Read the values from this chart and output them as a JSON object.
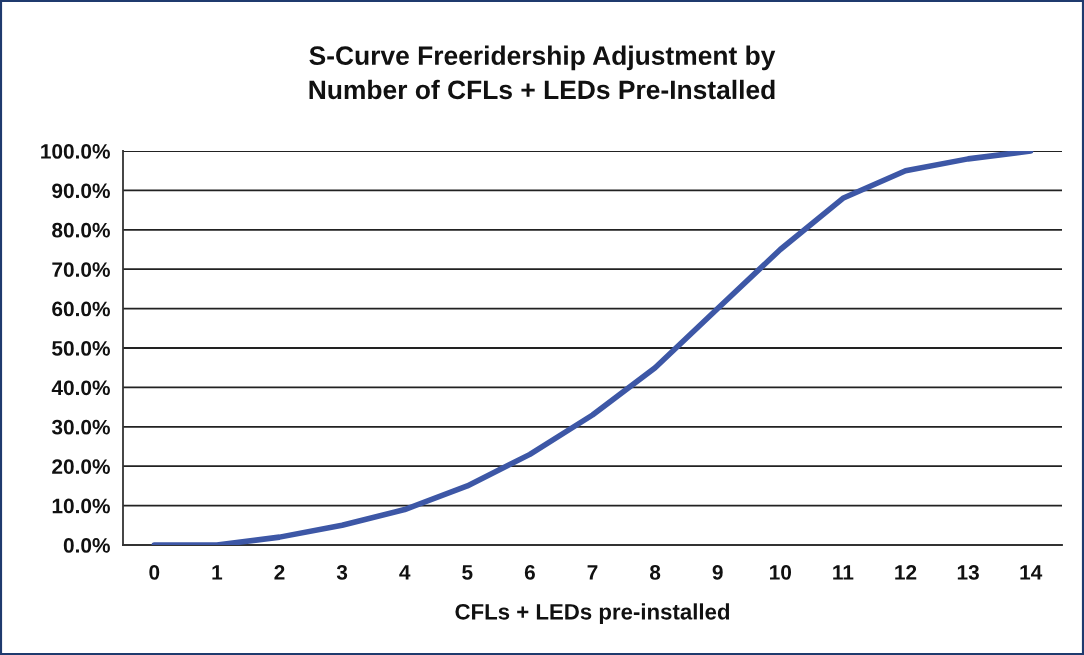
{
  "chart_data": {
    "type": "line",
    "title": "S-Curve Freeridership Adjustment by\nNumber of CFLs + LEDs Pre-Installed",
    "xlabel": "CFLs + LEDs pre-installed",
    "categories": [
      "0",
      "1",
      "2",
      "3",
      "4",
      "5",
      "6",
      "7",
      "8",
      "9",
      "10",
      "11",
      "12",
      "13",
      "14"
    ],
    "series": [
      {
        "color": "#3d57a6",
        "values": [
          0,
          0,
          2,
          5,
          9,
          15,
          23,
          33,
          45,
          60,
          75,
          88,
          95,
          98,
          100
        ]
      }
    ],
    "ylim": [
      0,
      100
    ],
    "yticks": [
      {
        "value": 0,
        "label": "0.0%"
      },
      {
        "value": 10,
        "label": "10.0%"
      },
      {
        "value": 20,
        "label": "20.0%"
      },
      {
        "value": 30,
        "label": "30.0%"
      },
      {
        "value": 40,
        "label": "40.0%"
      },
      {
        "value": 50,
        "label": "50.0%"
      },
      {
        "value": 60,
        "label": "60.0%"
      },
      {
        "value": 70,
        "label": "70.0%"
      },
      {
        "value": 80,
        "label": "80.0%"
      },
      {
        "value": 90,
        "label": "90.0%"
      },
      {
        "value": 100,
        "label": "100.0%"
      }
    ],
    "grid": "y",
    "marker": "none",
    "line_style": "solid"
  }
}
